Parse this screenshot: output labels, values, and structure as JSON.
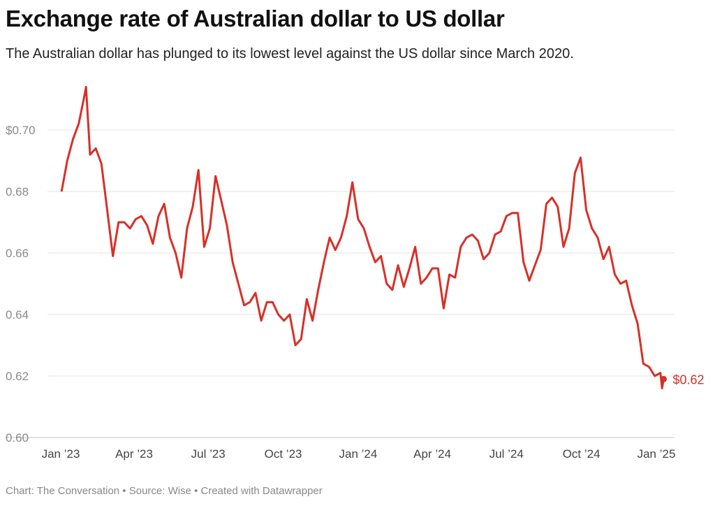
{
  "title": "Exchange rate of Australian dollar to US dollar",
  "subtitle": "The Australian dollar has plunged to its lowest level against the US dollar since March 2020.",
  "footer": "Chart: The Conversation • Source: Wise • Created with Datawrapper",
  "chart_data": {
    "type": "line",
    "xlabel": "",
    "ylabel": "",
    "ylim": [
      0.6,
      0.715
    ],
    "xlim": [
      "2023-01-01",
      "2025-01-12"
    ],
    "grid": true,
    "line_color": "#d73027",
    "y_ticks": [
      {
        "value": 0.6,
        "label": "0.60"
      },
      {
        "value": 0.62,
        "label": "0.62"
      },
      {
        "value": 0.64,
        "label": "0.64"
      },
      {
        "value": 0.66,
        "label": "0.66"
      },
      {
        "value": 0.68,
        "label": "0.68"
      },
      {
        "value": 0.7,
        "label": "$0.70"
      }
    ],
    "x_ticks": [
      {
        "date": "2023-01-01",
        "label": "Jan ’23"
      },
      {
        "date": "2023-04-01",
        "label": "Apr ’23"
      },
      {
        "date": "2023-07-01",
        "label": "Jul ’23"
      },
      {
        "date": "2023-10-01",
        "label": "Oct ’23"
      },
      {
        "date": "2024-01-01",
        "label": "Jan ’24"
      },
      {
        "date": "2024-04-01",
        "label": "Apr ’24"
      },
      {
        "date": "2024-07-01",
        "label": "Jul ’24"
      },
      {
        "date": "2024-10-01",
        "label": "Oct ’24"
      },
      {
        "date": "2025-01-01",
        "label": "Jan ’25"
      }
    ],
    "end_label": "$0.62",
    "series": [
      {
        "x": [
          "2023-01-02",
          "2023-01-09",
          "2023-01-16",
          "2023-01-23",
          "2023-01-30",
          "2023-02-01",
          "2023-02-06",
          "2023-02-13",
          "2023-02-20",
          "2023-02-27",
          "2023-03-06",
          "2023-03-13",
          "2023-03-20",
          "2023-03-27",
          "2023-04-03",
          "2023-04-10",
          "2023-04-17",
          "2023-04-24",
          "2023-05-01",
          "2023-05-08",
          "2023-05-15",
          "2023-05-22",
          "2023-05-29",
          "2023-06-05",
          "2023-06-12",
          "2023-06-19",
          "2023-06-26",
          "2023-07-03",
          "2023-07-10",
          "2023-07-17",
          "2023-07-24",
          "2023-07-31",
          "2023-08-07",
          "2023-08-14",
          "2023-08-21",
          "2023-08-28",
          "2023-09-04",
          "2023-09-11",
          "2023-09-18",
          "2023-09-25",
          "2023-10-02",
          "2023-10-09",
          "2023-10-16",
          "2023-10-23",
          "2023-10-30",
          "2023-11-06",
          "2023-11-13",
          "2023-11-20",
          "2023-11-27",
          "2023-12-04",
          "2023-12-11",
          "2023-12-18",
          "2023-12-25",
          "2024-01-01",
          "2024-01-08",
          "2024-01-15",
          "2024-01-22",
          "2024-01-29",
          "2024-02-05",
          "2024-02-12",
          "2024-02-19",
          "2024-02-26",
          "2024-03-04",
          "2024-03-11",
          "2024-03-18",
          "2024-03-25",
          "2024-04-01",
          "2024-04-08",
          "2024-04-15",
          "2024-04-22",
          "2024-04-29",
          "2024-05-06",
          "2024-05-13",
          "2024-05-20",
          "2024-05-27",
          "2024-06-03",
          "2024-06-10",
          "2024-06-17",
          "2024-06-24",
          "2024-07-01",
          "2024-07-08",
          "2024-07-15",
          "2024-07-22",
          "2024-07-29",
          "2024-08-05",
          "2024-08-12",
          "2024-08-19",
          "2024-08-26",
          "2024-09-02",
          "2024-09-09",
          "2024-09-16",
          "2024-09-23",
          "2024-09-30",
          "2024-10-07",
          "2024-10-14",
          "2024-10-21",
          "2024-10-28",
          "2024-11-04",
          "2024-11-11",
          "2024-11-18",
          "2024-11-25",
          "2024-12-02",
          "2024-12-09",
          "2024-12-16",
          "2024-12-23",
          "2024-12-30",
          "2025-01-06",
          "2025-01-08",
          "2025-01-10"
        ],
        "y": [
          0.68,
          0.69,
          0.697,
          0.702,
          0.711,
          0.714,
          0.692,
          0.694,
          0.689,
          0.674,
          0.659,
          0.67,
          0.67,
          0.668,
          0.671,
          0.672,
          0.669,
          0.663,
          0.672,
          0.676,
          0.665,
          0.66,
          0.652,
          0.668,
          0.675,
          0.687,
          0.662,
          0.668,
          0.685,
          0.677,
          0.669,
          0.657,
          0.65,
          0.643,
          0.644,
          0.647,
          0.638,
          0.644,
          0.644,
          0.64,
          0.638,
          0.64,
          0.63,
          0.632,
          0.645,
          0.638,
          0.648,
          0.657,
          0.665,
          0.661,
          0.665,
          0.672,
          0.683,
          0.671,
          0.668,
          0.662,
          0.657,
          0.659,
          0.65,
          0.648,
          0.656,
          0.649,
          0.655,
          0.662,
          0.65,
          0.652,
          0.655,
          0.655,
          0.642,
          0.653,
          0.652,
          0.662,
          0.665,
          0.666,
          0.664,
          0.658,
          0.66,
          0.666,
          0.667,
          0.672,
          0.673,
          0.673,
          0.657,
          0.651,
          0.656,
          0.661,
          0.676,
          0.678,
          0.675,
          0.662,
          0.668,
          0.686,
          0.691,
          0.674,
          0.668,
          0.665,
          0.658,
          0.662,
          0.653,
          0.65,
          0.651,
          0.643,
          0.637,
          0.624,
          0.623,
          0.62,
          0.621,
          0.616,
          0.619
        ]
      }
    ]
  }
}
